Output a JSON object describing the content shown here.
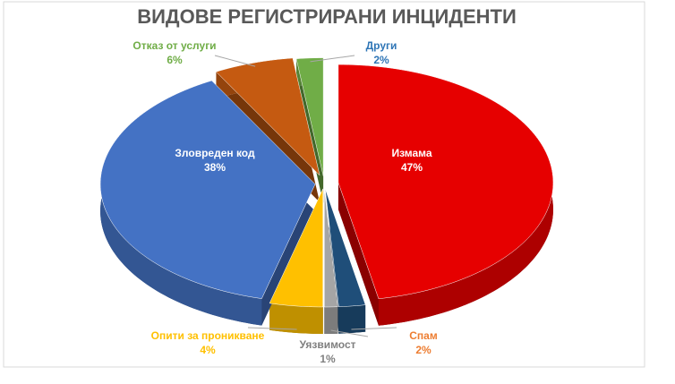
{
  "chart_data": {
    "type": "pie",
    "title": "ВИДОВЕ РЕГИСТРИРАНИ ИНЦИДЕНТИ",
    "categories": [
      "Измама",
      "Спам",
      "Уязвимост",
      "Опити за проникване",
      "Зловреден код",
      "Отказ от услуги",
      "Други"
    ],
    "values": [
      47,
      2,
      1,
      4,
      38,
      6,
      2
    ],
    "value_labels": [
      "47%",
      "2%",
      "1%",
      "4%",
      "38%",
      "6%",
      "2%"
    ],
    "colors": [
      "#e60000",
      "#1f4e79",
      "#a5a5a5",
      "#ffc000",
      "#4472c4",
      "#c55a11",
      "#70ad47"
    ],
    "label_colors": [
      "#ffffff",
      "#ed7d31",
      "#7f7f7f",
      "#ffc000",
      "#ffffff",
      "#70ad47",
      "#2e75b6"
    ]
  }
}
